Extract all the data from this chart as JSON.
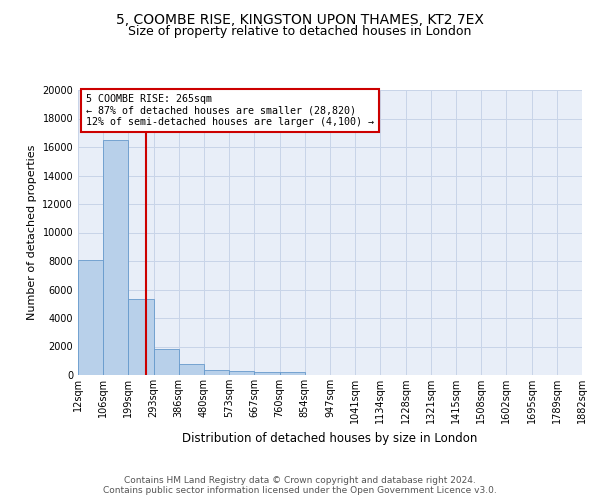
{
  "title": "5, COOMBE RISE, KINGSTON UPON THAMES, KT2 7EX",
  "subtitle": "Size of property relative to detached houses in London",
  "xlabel": "Distribution of detached houses by size in London",
  "ylabel": "Number of detached properties",
  "categories": [
    "12sqm",
    "106sqm",
    "199sqm",
    "293sqm",
    "386sqm",
    "480sqm",
    "573sqm",
    "667sqm",
    "760sqm",
    "854sqm",
    "947sqm",
    "1041sqm",
    "1134sqm",
    "1228sqm",
    "1321sqm",
    "1415sqm",
    "1508sqm",
    "1602sqm",
    "1695sqm",
    "1789sqm",
    "1882sqm"
  ],
  "values": [
    8100,
    16500,
    5350,
    1850,
    800,
    350,
    275,
    225,
    200,
    0,
    0,
    0,
    0,
    0,
    0,
    0,
    0,
    0,
    0,
    0
  ],
  "bar_color": "#b8d0ea",
  "bar_edge_color": "#6699cc",
  "vline_color": "#cc0000",
  "annotation_box_color": "#cc0000",
  "ylim": [
    0,
    20000
  ],
  "yticks": [
    0,
    2000,
    4000,
    6000,
    8000,
    10000,
    12000,
    14000,
    16000,
    18000,
    20000
  ],
  "grid_color": "#c8d4e8",
  "bg_color": "#e8eef8",
  "footer": "Contains HM Land Registry data © Crown copyright and database right 2024.\nContains public sector information licensed under the Open Government Licence v3.0.",
  "title_fontsize": 10,
  "subtitle_fontsize": 9,
  "ylabel_fontsize": 8,
  "xlabel_fontsize": 8.5,
  "tick_fontsize": 7,
  "footer_fontsize": 6.5,
  "annotation_line1": "5 COOMBE RISE: 265sqm",
  "annotation_line2": "← 87% of detached houses are smaller (28,820)",
  "annotation_line3": "12% of semi-detached houses are larger (4,100) →"
}
